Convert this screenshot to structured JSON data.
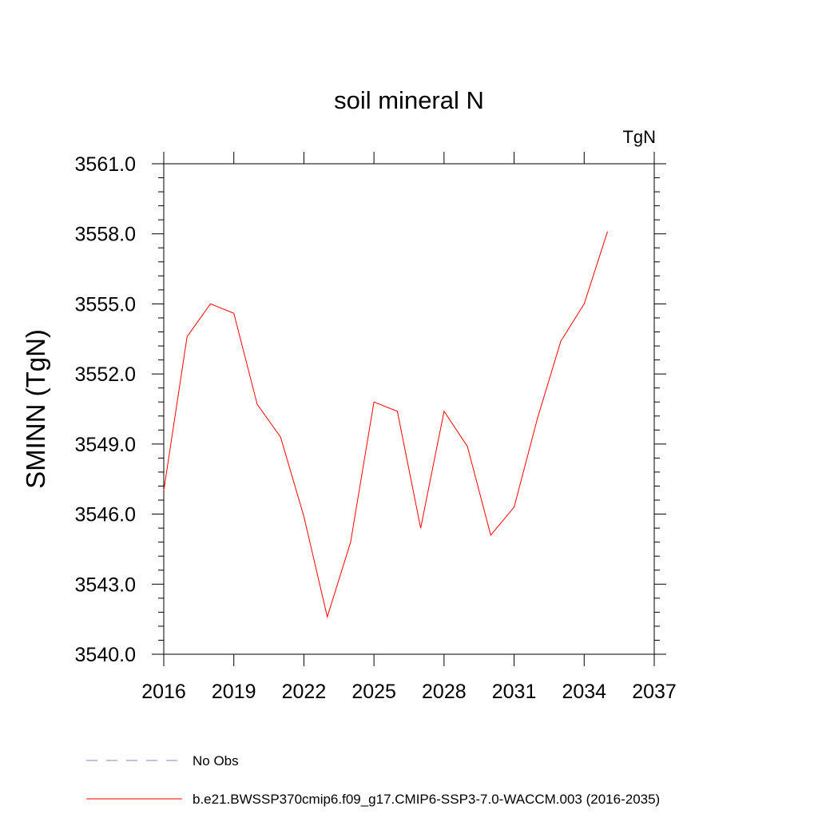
{
  "chart_data": {
    "type": "line",
    "title": "soil mineral N",
    "units_label": "TgN",
    "xlabel": "",
    "ylabel": "SMINN  (TgN)",
    "xlim": [
      2016,
      2037
    ],
    "ylim": [
      3540.0,
      3561.0
    ],
    "x_ticks": [
      2016,
      2019,
      2022,
      2025,
      2028,
      2031,
      2034,
      2037
    ],
    "x_tick_labels": [
      "2016",
      "2019",
      "2022",
      "2025",
      "2028",
      "2031",
      "2034",
      "2037"
    ],
    "y_ticks": [
      3540.0,
      3543.0,
      3546.0,
      3549.0,
      3552.0,
      3555.0,
      3558.0,
      3561.0
    ],
    "y_tick_labels": [
      "3540.0",
      "3543.0",
      "3546.0",
      "3549.0",
      "3552.0",
      "3555.0",
      "3558.0",
      "3561.0"
    ],
    "grid": false,
    "legend_position": "bottom",
    "legend": [
      {
        "name": "No Obs",
        "style": "dashed",
        "color": "#8080c0"
      },
      {
        "name": "b.e21.BWSSP370cmip6.f09_g17.CMIP6-SSP3-7.0-WACCM.003 (2016-2035)",
        "style": "solid",
        "color": "#ff0000"
      }
    ],
    "series": [
      {
        "name": "b.e21.BWSSP370cmip6.f09_g17.CMIP6-SSP3-7.0-WACCM.003 (2016-2035)",
        "color": "#ff0000",
        "x": [
          2016,
          2017,
          2018,
          2019,
          2020,
          2021,
          2022,
          2023,
          2024,
          2025,
          2026,
          2027,
          2028,
          2029,
          2030,
          2031,
          2032,
          2033,
          2034,
          2035
        ],
        "y": [
          3547.0,
          3553.6,
          3555.0,
          3554.6,
          3550.7,
          3549.3,
          3545.9,
          3541.6,
          3544.8,
          3550.8,
          3550.4,
          3545.4,
          3550.4,
          3548.9,
          3545.1,
          3546.3,
          3550.1,
          3553.4,
          3555.0,
          3558.1
        ]
      }
    ]
  }
}
